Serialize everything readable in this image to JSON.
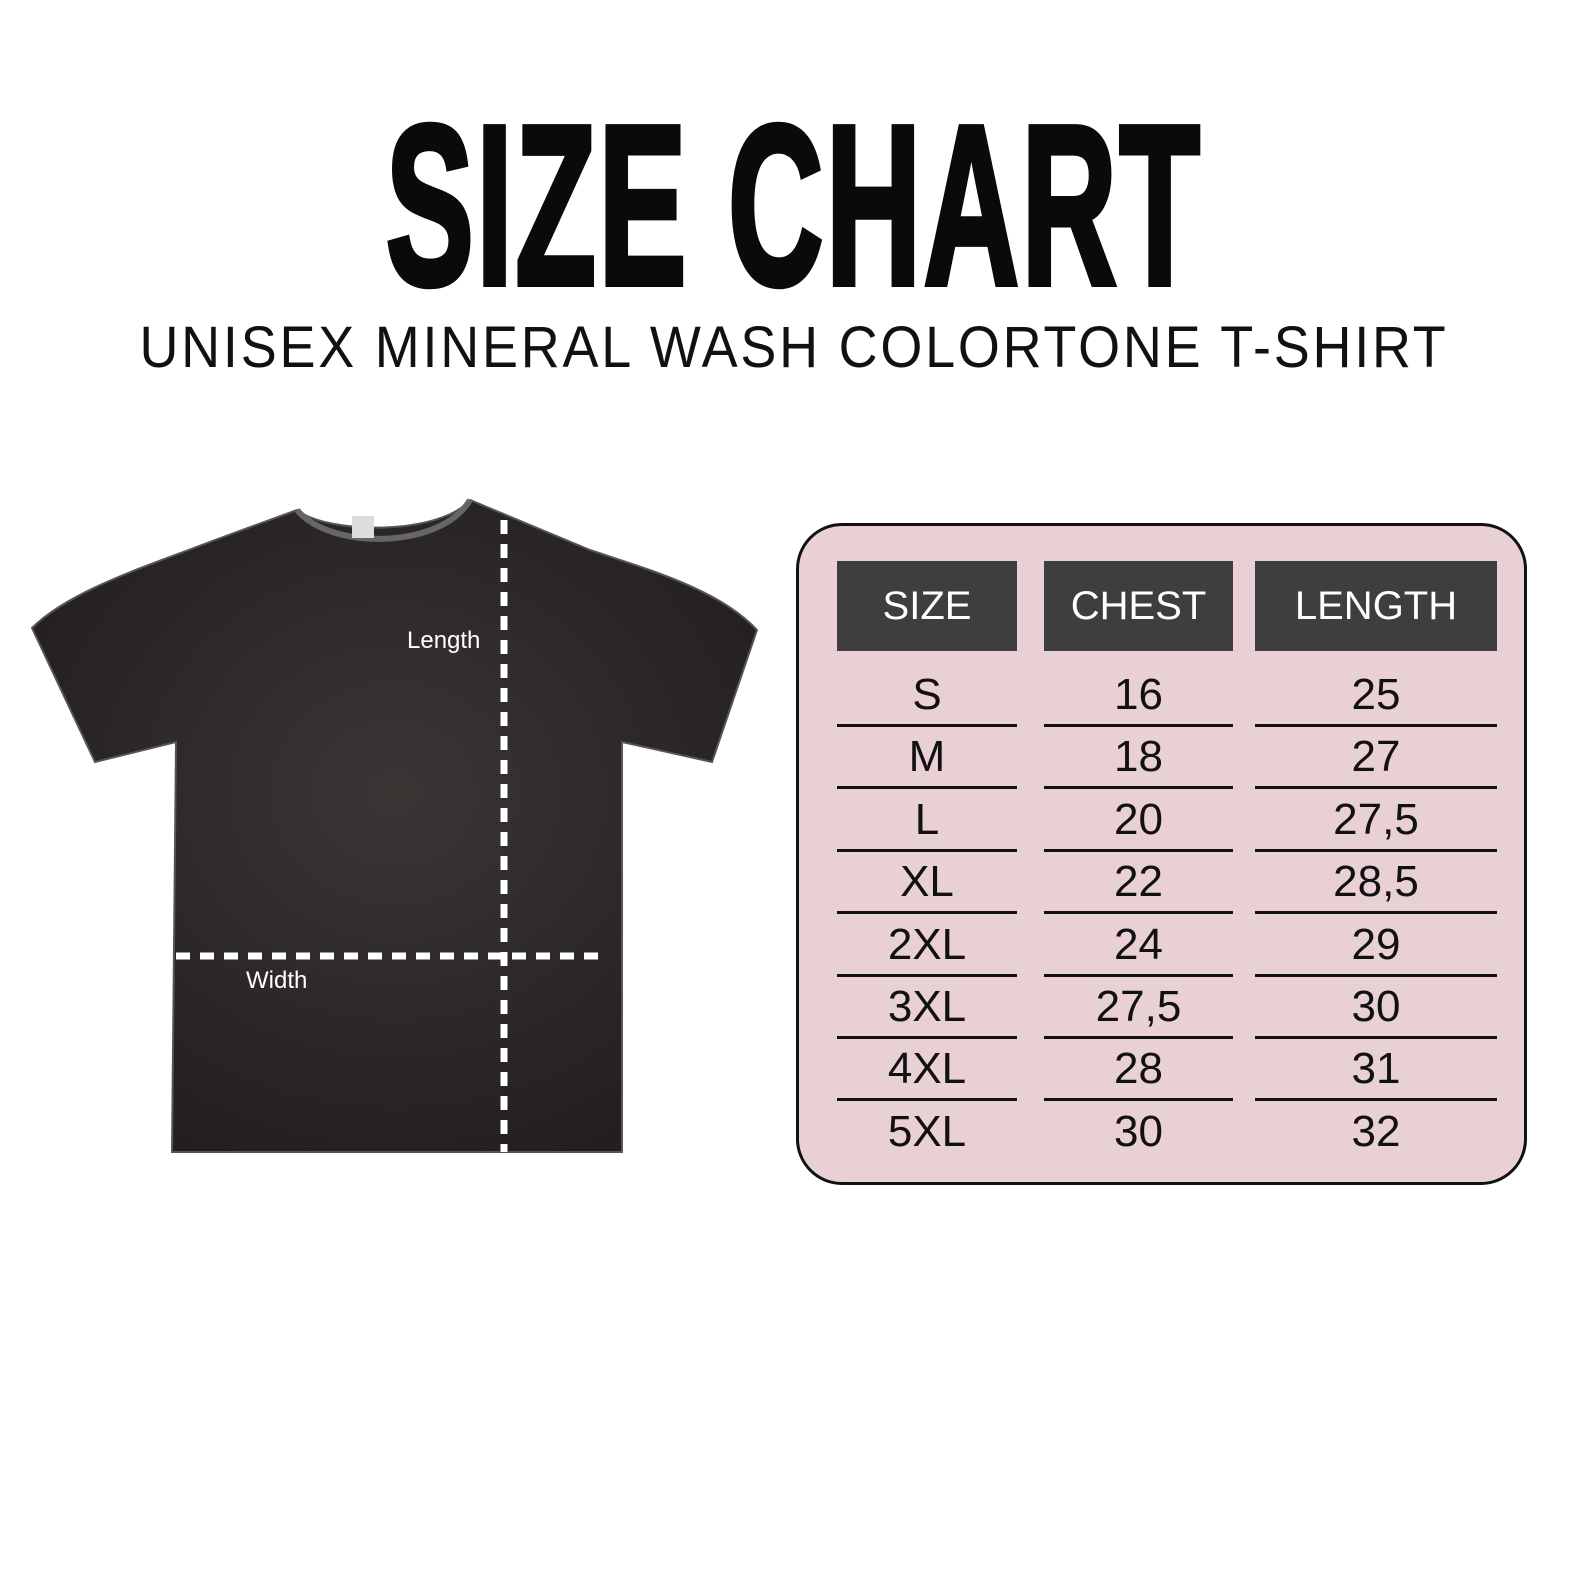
{
  "title": "SIZE CHART",
  "subtitle": "UNISEX MINERAL WASH COLORTONE T-SHIRT",
  "shirt": {
    "length_label": "Length",
    "width_label": "Width",
    "color": "#2a2727"
  },
  "table": {
    "background": "#e8d0d4",
    "header_color": "#3e3e3e",
    "headers": [
      "SIZE",
      "CHEST",
      "LENGTH"
    ],
    "rows": [
      [
        "S",
        "16",
        "25"
      ],
      [
        "M",
        "18",
        "27"
      ],
      [
        "L",
        "20",
        "27,5"
      ],
      [
        "XL",
        "22",
        "28,5"
      ],
      [
        "2XL",
        "24",
        "29"
      ],
      [
        "3XL",
        "27,5",
        "30"
      ],
      [
        "4XL",
        "28",
        "31"
      ],
      [
        "5XL",
        "30",
        "32"
      ]
    ]
  }
}
